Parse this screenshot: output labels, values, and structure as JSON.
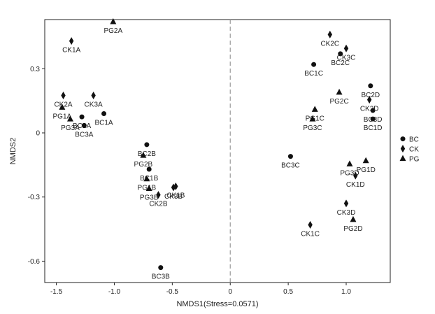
{
  "chart_data": {
    "type": "scatter",
    "xlabel": "NMDS1(Stress=0.0571)",
    "ylabel": "NMDS2",
    "xlim": [
      -1.6,
      1.38
    ],
    "ylim": [
      -0.7,
      0.53
    ],
    "xticks": [
      -1.5,
      -1.0,
      -0.5,
      0,
      0.5,
      1.0
    ],
    "xtick_labels": [
      "-1.5",
      "-1.0",
      "-0.5",
      "0",
      "0.5",
      "1.0"
    ],
    "yticks": [
      0.3,
      0,
      -0.3,
      -0.6
    ],
    "ytick_labels": [
      "0.3",
      "0",
      "-0.3",
      "-0.6"
    ],
    "reference_line": {
      "x": 0,
      "style": "dashed",
      "color": "#999999"
    },
    "legend_position": "right",
    "series": [
      {
        "name": "BC",
        "marker": "circle",
        "points": [
          {
            "label": "BC1A",
            "x": -1.09,
            "y": 0.09
          },
          {
            "label": "BC2A",
            "x": -1.28,
            "y": 0.075
          },
          {
            "label": "BC3A",
            "x": -1.26,
            "y": 0.035
          },
          {
            "label": "BC1B",
            "x": -0.7,
            "y": -0.17
          },
          {
            "label": "BC2B",
            "x": -0.72,
            "y": -0.055
          },
          {
            "label": "BC3B",
            "x": -0.6,
            "y": -0.63
          },
          {
            "label": "BC1C",
            "x": 0.72,
            "y": 0.32
          },
          {
            "label": "BC2C",
            "x": 0.95,
            "y": 0.37
          },
          {
            "label": "BC3C",
            "x": 0.52,
            "y": -0.11
          },
          {
            "label": "BC1D",
            "x": 1.23,
            "y": 0.065
          },
          {
            "label": "BC2D",
            "x": 1.21,
            "y": 0.22
          },
          {
            "label": "BC3D",
            "x": 1.23,
            "y": 0.105
          }
        ]
      },
      {
        "name": "CK",
        "marker": "diamond",
        "points": [
          {
            "label": "CK1A",
            "x": -1.37,
            "y": 0.43
          },
          {
            "label": "CK2A",
            "x": -1.44,
            "y": 0.175
          },
          {
            "label": "CK3A",
            "x": -1.18,
            "y": 0.175
          },
          {
            "label": "CK1B",
            "x": -0.47,
            "y": -0.25
          },
          {
            "label": "CK2B",
            "x": -0.62,
            "y": -0.29
          },
          {
            "label": "CK3B",
            "x": -0.49,
            "y": -0.255
          },
          {
            "label": "CK1C",
            "x": 0.69,
            "y": -0.43
          },
          {
            "label": "CK2C",
            "x": 0.86,
            "y": 0.46
          },
          {
            "label": "CK3C",
            "x": 1.0,
            "y": 0.395
          },
          {
            "label": "CK1D",
            "x": 1.08,
            "y": -0.2
          },
          {
            "label": "CK2D",
            "x": 1.2,
            "y": 0.155
          },
          {
            "label": "CK3D",
            "x": 1.0,
            "y": -0.33
          }
        ]
      },
      {
        "name": "PG",
        "marker": "triangle",
        "points": [
          {
            "label": "PG1A",
            "x": -1.45,
            "y": 0.12
          },
          {
            "label": "PG2A",
            "x": -1.01,
            "y": 0.52
          },
          {
            "label": "PG3A",
            "x": -1.38,
            "y": 0.065
          },
          {
            "label": "PG1B",
            "x": -0.72,
            "y": -0.215
          },
          {
            "label": "PG2B",
            "x": -0.75,
            "y": -0.105
          },
          {
            "label": "PG3B",
            "x": -0.7,
            "y": -0.26
          },
          {
            "label": "PG1C",
            "x": 0.73,
            "y": 0.11
          },
          {
            "label": "PG2C",
            "x": 0.94,
            "y": 0.19
          },
          {
            "label": "PG3C",
            "x": 0.71,
            "y": 0.065
          },
          {
            "label": "PG1D",
            "x": 1.17,
            "y": -0.13
          },
          {
            "label": "PG2D",
            "x": 1.06,
            "y": -0.405
          },
          {
            "label": "PG3D",
            "x": 1.03,
            "y": -0.145
          }
        ]
      }
    ]
  }
}
